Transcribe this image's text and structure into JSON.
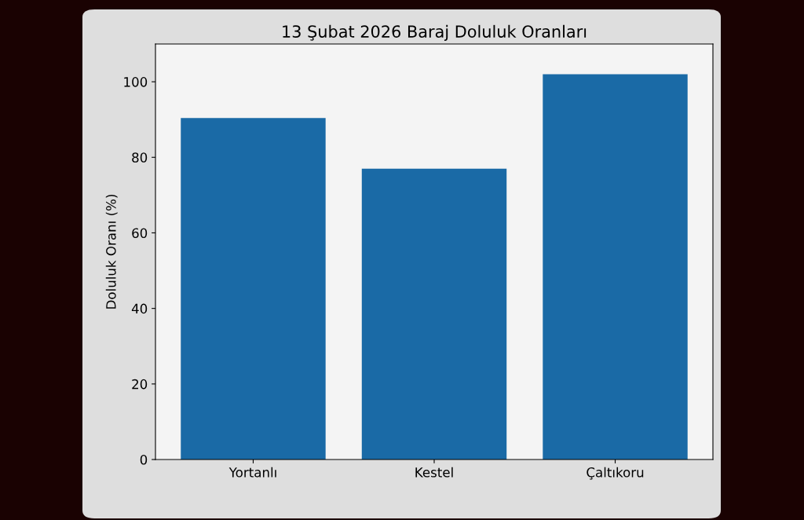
{
  "chart_data": {
    "type": "bar",
    "title": "13 Şubat 2026 Baraj Doluluk Oranları",
    "ylabel": "Doluluk Oranı (%)",
    "categories": [
      "Yortanlı",
      "Kestel",
      "Çaltıkoru"
    ],
    "values": [
      90.4,
      77.0,
      102.0
    ],
    "color": "#1a6aa6",
    "ylim": [
      0,
      110
    ],
    "yticks": [
      0,
      20,
      40,
      60,
      80,
      100
    ],
    "grid": false
  }
}
